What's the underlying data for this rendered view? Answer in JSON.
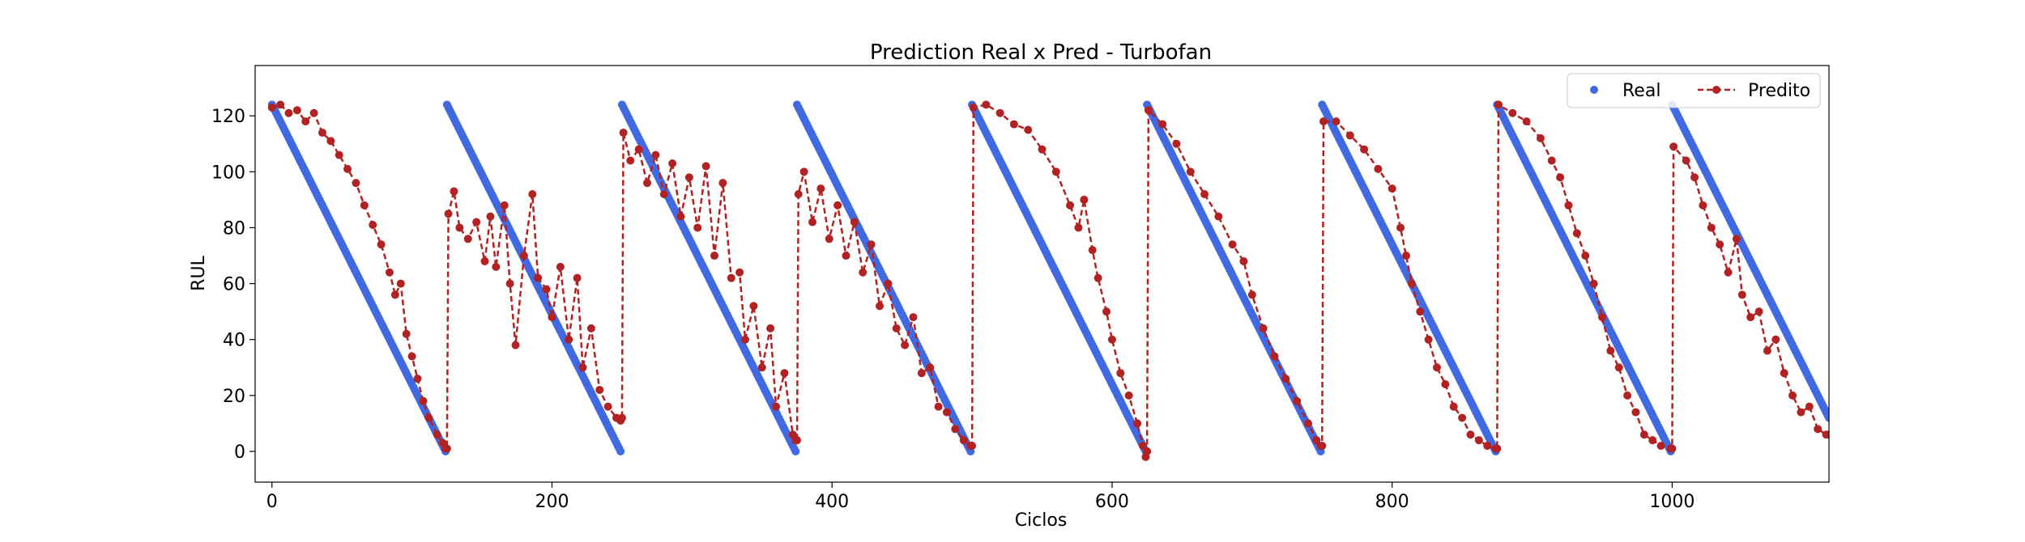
{
  "chart_data": {
    "type": "line",
    "title": "Prediction Real x Pred - Turbofan",
    "xlabel": "Ciclos",
    "ylabel": "RUL",
    "xlim": [
      -12,
      1112
    ],
    "ylim": [
      -11,
      138
    ],
    "xticks": [
      0,
      200,
      400,
      600,
      800,
      1000
    ],
    "yticks": [
      0,
      20,
      40,
      60,
      80,
      100,
      120
    ],
    "grid": false,
    "legend_position": "top-right",
    "colors": {
      "real": "#4169e1",
      "pred": "#b22222"
    },
    "series": [
      {
        "name": "Real",
        "style": "markers",
        "segments": [
          {
            "x_start": 0,
            "x_end": 124,
            "y_start": 124,
            "y_end": 0
          },
          {
            "x_start": 125,
            "x_end": 249,
            "y_start": 124,
            "y_end": 0
          },
          {
            "x_start": 250,
            "x_end": 374,
            "y_start": 124,
            "y_end": 0
          },
          {
            "x_start": 375,
            "x_end": 499,
            "y_start": 124,
            "y_end": 0
          },
          {
            "x_start": 500,
            "x_end": 624,
            "y_start": 124,
            "y_end": 0
          },
          {
            "x_start": 625,
            "x_end": 749,
            "y_start": 124,
            "y_end": 0
          },
          {
            "x_start": 750,
            "x_end": 874,
            "y_start": 124,
            "y_end": 0
          },
          {
            "x_start": 875,
            "x_end": 999,
            "y_start": 124,
            "y_end": 0
          },
          {
            "x_start": 1000,
            "x_end": 1112,
            "y_start": 124,
            "y_end": 12
          }
        ]
      },
      {
        "name": "Predito",
        "style": "dashed-line-markers",
        "points": [
          [
            0,
            123
          ],
          [
            6,
            124
          ],
          [
            12,
            121
          ],
          [
            18,
            122
          ],
          [
            24,
            118
          ],
          [
            30,
            121
          ],
          [
            36,
            114
          ],
          [
            42,
            111
          ],
          [
            48,
            106
          ],
          [
            54,
            101
          ],
          [
            60,
            96
          ],
          [
            66,
            88
          ],
          [
            72,
            81
          ],
          [
            78,
            74
          ],
          [
            84,
            64
          ],
          [
            88,
            56
          ],
          [
            92,
            60
          ],
          [
            96,
            42
          ],
          [
            100,
            34
          ],
          [
            104,
            26
          ],
          [
            108,
            18
          ],
          [
            112,
            12
          ],
          [
            118,
            6
          ],
          [
            122,
            3
          ],
          [
            124,
            1
          ],
          [
            125,
            1
          ],
          [
            126,
            85
          ],
          [
            130,
            93
          ],
          [
            134,
            80
          ],
          [
            140,
            76
          ],
          [
            146,
            82
          ],
          [
            152,
            68
          ],
          [
            156,
            84
          ],
          [
            160,
            66
          ],
          [
            166,
            88
          ],
          [
            170,
            60
          ],
          [
            174,
            38
          ],
          [
            180,
            70
          ],
          [
            186,
            92
          ],
          [
            190,
            62
          ],
          [
            196,
            58
          ],
          [
            200,
            48
          ],
          [
            206,
            66
          ],
          [
            212,
            40
          ],
          [
            218,
            62
          ],
          [
            222,
            30
          ],
          [
            228,
            44
          ],
          [
            234,
            22
          ],
          [
            240,
            16
          ],
          [
            246,
            12
          ],
          [
            249,
            11
          ],
          [
            250,
            12
          ],
          [
            251,
            114
          ],
          [
            256,
            104
          ],
          [
            262,
            108
          ],
          [
            268,
            96
          ],
          [
            274,
            106
          ],
          [
            280,
            92
          ],
          [
            286,
            103
          ],
          [
            292,
            84
          ],
          [
            298,
            98
          ],
          [
            304,
            80
          ],
          [
            310,
            102
          ],
          [
            316,
            70
          ],
          [
            322,
            96
          ],
          [
            328,
            62
          ],
          [
            334,
            64
          ],
          [
            338,
            40
          ],
          [
            344,
            52
          ],
          [
            350,
            30
          ],
          [
            356,
            44
          ],
          [
            360,
            16
          ],
          [
            366,
            28
          ],
          [
            372,
            6
          ],
          [
            374,
            4
          ],
          [
            375,
            4
          ],
          [
            376,
            92
          ],
          [
            380,
            100
          ],
          [
            386,
            82
          ],
          [
            392,
            94
          ],
          [
            398,
            76
          ],
          [
            404,
            88
          ],
          [
            410,
            70
          ],
          [
            416,
            82
          ],
          [
            422,
            64
          ],
          [
            428,
            74
          ],
          [
            434,
            52
          ],
          [
            440,
            60
          ],
          [
            446,
            44
          ],
          [
            452,
            38
          ],
          [
            458,
            48
          ],
          [
            464,
            28
          ],
          [
            470,
            30
          ],
          [
            476,
            16
          ],
          [
            482,
            14
          ],
          [
            488,
            8
          ],
          [
            494,
            4
          ],
          [
            499,
            2
          ],
          [
            500,
            2
          ],
          [
            501,
            123
          ],
          [
            510,
            124
          ],
          [
            520,
            121
          ],
          [
            530,
            117
          ],
          [
            540,
            115
          ],
          [
            550,
            108
          ],
          [
            560,
            100
          ],
          [
            570,
            88
          ],
          [
            576,
            80
          ],
          [
            580,
            90
          ],
          [
            586,
            72
          ],
          [
            590,
            62
          ],
          [
            596,
            50
          ],
          [
            600,
            40
          ],
          [
            606,
            28
          ],
          [
            612,
            20
          ],
          [
            618,
            10
          ],
          [
            622,
            2
          ],
          [
            624,
            -2
          ],
          [
            625,
            0
          ],
          [
            626,
            122
          ],
          [
            636,
            117
          ],
          [
            646,
            110
          ],
          [
            656,
            100
          ],
          [
            666,
            92
          ],
          [
            676,
            84
          ],
          [
            686,
            74
          ],
          [
            694,
            68
          ],
          [
            700,
            56
          ],
          [
            708,
            44
          ],
          [
            716,
            34
          ],
          [
            724,
            26
          ],
          [
            732,
            18
          ],
          [
            740,
            10
          ],
          [
            746,
            4
          ],
          [
            749,
            2
          ],
          [
            750,
            2
          ],
          [
            751,
            118
          ],
          [
            760,
            118
          ],
          [
            770,
            113
          ],
          [
            780,
            108
          ],
          [
            790,
            101
          ],
          [
            800,
            94
          ],
          [
            806,
            80
          ],
          [
            810,
            70
          ],
          [
            814,
            60
          ],
          [
            820,
            50
          ],
          [
            826,
            40
          ],
          [
            832,
            30
          ],
          [
            838,
            24
          ],
          [
            844,
            16
          ],
          [
            850,
            12
          ],
          [
            856,
            6
          ],
          [
            862,
            4
          ],
          [
            868,
            2
          ],
          [
            874,
            1
          ],
          [
            875,
            1
          ],
          [
            876,
            124
          ],
          [
            886,
            121
          ],
          [
            896,
            118
          ],
          [
            906,
            112
          ],
          [
            914,
            104
          ],
          [
            920,
            98
          ],
          [
            926,
            88
          ],
          [
            932,
            78
          ],
          [
            938,
            70
          ],
          [
            944,
            60
          ],
          [
            950,
            48
          ],
          [
            956,
            36
          ],
          [
            962,
            30
          ],
          [
            968,
            20
          ],
          [
            974,
            14
          ],
          [
            980,
            6
          ],
          [
            986,
            4
          ],
          [
            992,
            2
          ],
          [
            999,
            1
          ],
          [
            1000,
            1
          ],
          [
            1001,
            109
          ],
          [
            1010,
            104
          ],
          [
            1016,
            98
          ],
          [
            1022,
            88
          ],
          [
            1028,
            80
          ],
          [
            1034,
            74
          ],
          [
            1040,
            64
          ],
          [
            1046,
            76
          ],
          [
            1050,
            56
          ],
          [
            1056,
            48
          ],
          [
            1062,
            50
          ],
          [
            1068,
            36
          ],
          [
            1074,
            40
          ],
          [
            1080,
            28
          ],
          [
            1086,
            20
          ],
          [
            1092,
            14
          ],
          [
            1098,
            16
          ],
          [
            1104,
            8
          ],
          [
            1110,
            6
          ],
          [
            1112,
            6
          ]
        ]
      }
    ]
  }
}
